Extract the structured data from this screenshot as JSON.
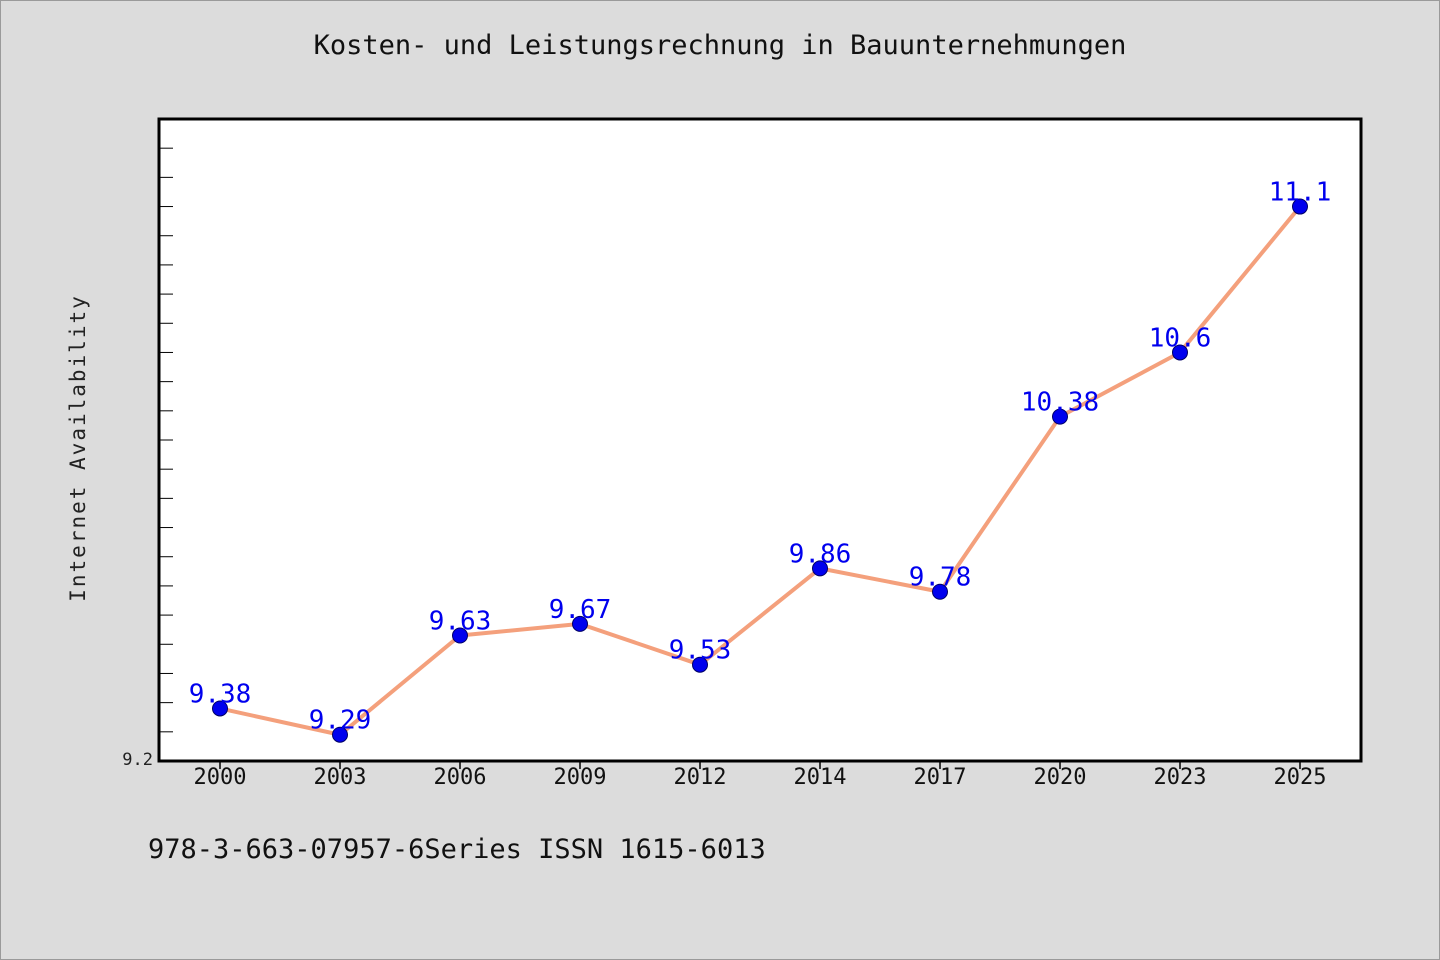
{
  "title": "Kosten- und Leistungsrechnung in Bauunternehmungen",
  "footer_text": "978-3-663-07957-6Series ISSN 1615-6013",
  "colors": {
    "background": "#dcdcdc",
    "plot_background": "#ffffff",
    "line": "#f4a07c",
    "marker": "#0000ee",
    "data_label": "#0000ee"
  },
  "chart_data": {
    "type": "line",
    "title": "Kosten- und Leistungsrechnung in Bauunternehmungen",
    "xlabel": "",
    "ylabel": "Internet Availability",
    "categories": [
      "2000",
      "2003",
      "2006",
      "2009",
      "2012",
      "2014",
      "2017",
      "2020",
      "2023",
      "2025"
    ],
    "series": [
      {
        "values": [
          9.38,
          9.29,
          9.63,
          9.67,
          9.53,
          9.86,
          9.78,
          10.38,
          10.6,
          11.1
        ],
        "labels": [
          "9.38",
          "9.29",
          "9.63",
          "9.67",
          "9.53",
          "9.86",
          "9.78",
          "10.38",
          "10.6",
          "11.1"
        ]
      }
    ],
    "ylim": [
      9.2,
      11.4
    ],
    "y_tick_labels": [
      "9.2"
    ],
    "y_minor_tick_step": 0.1,
    "grid": false,
    "legend": "none"
  }
}
